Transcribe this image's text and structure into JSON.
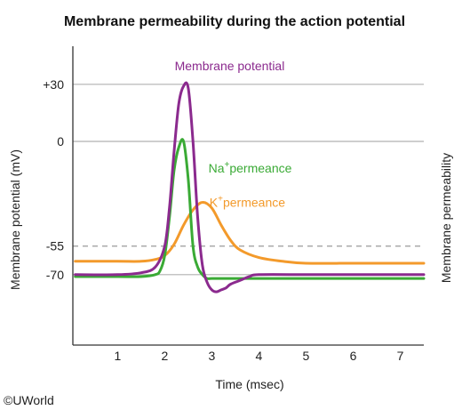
{
  "chart_data": {
    "type": "line",
    "title": "Membrane permeability during the action potential",
    "xlabel": "Time (msec)",
    "ylabel": "Membrane potential (mV)",
    "ylabel_right": "Membrane permeability",
    "xlim": [
      0.05,
      7.5
    ],
    "ylim": [
      -107,
      50
    ],
    "x_ticks": [
      "1",
      "2",
      "3",
      "4",
      "5",
      "6",
      "7"
    ],
    "y_ticks": [
      {
        "value": 30,
        "label": "+30"
      },
      {
        "value": 0,
        "label": "0"
      },
      {
        "value": -55,
        "label": "-55"
      },
      {
        "value": -70,
        "label": "-70"
      }
    ],
    "reference_lines": [
      {
        "value": 30,
        "style": "solid"
      },
      {
        "value": 0,
        "style": "solid"
      },
      {
        "value": -55,
        "style": "dashed"
      },
      {
        "value": -70,
        "style": "solid"
      }
    ],
    "grid": false,
    "series": [
      {
        "name": "Membrane potential",
        "color": "#8b2a8e",
        "x": [
          0.1,
          1.0,
          1.5,
          1.8,
          2.0,
          2.1,
          2.2,
          2.3,
          2.4,
          2.5,
          2.6,
          2.7,
          2.8,
          2.9,
          3.0,
          3.1,
          3.2,
          3.3,
          3.4,
          3.6,
          3.8,
          4.0,
          5.0,
          6.0,
          7.0,
          7.5
        ],
        "y": [
          -70,
          -70,
          -69,
          -66,
          -55,
          -35,
          -5,
          20,
          29,
          28,
          0,
          -40,
          -65,
          -74,
          -78,
          -79,
          -78,
          -77,
          -75,
          -73,
          -71,
          -70,
          -70,
          -70,
          -70,
          -70
        ]
      },
      {
        "name": "Na+ permeance",
        "color": "#3aaa35",
        "x": [
          0.1,
          1.0,
          1.5,
          1.8,
          1.9,
          2.0,
          2.1,
          2.2,
          2.3,
          2.4,
          2.5,
          2.6,
          2.7,
          2.8,
          2.9,
          3.0,
          3.2,
          3.5,
          4.0,
          5.0,
          6.0,
          7.0,
          7.5
        ],
        "y": [
          -71,
          -71,
          -71,
          -70,
          -68,
          -60,
          -40,
          -15,
          -3,
          0,
          -20,
          -55,
          -66,
          -70,
          -72,
          -72,
          -72,
          -72,
          -72,
          -72,
          -72,
          -72,
          -72
        ]
      },
      {
        "name": "K+ permeance",
        "color": "#f39a2b",
        "x": [
          0.1,
          1.0,
          1.5,
          1.8,
          2.0,
          2.2,
          2.4,
          2.6,
          2.8,
          3.0,
          3.2,
          3.4,
          3.6,
          4.0,
          4.5,
          5.0,
          6.0,
          7.0,
          7.5
        ],
        "y": [
          -63,
          -63,
          -63,
          -62,
          -60,
          -54,
          -44,
          -36,
          -32,
          -35,
          -44,
          -52,
          -57,
          -61,
          -63,
          -64,
          -64,
          -64,
          -64
        ]
      }
    ],
    "annotations": [
      {
        "text": "Membrane potential",
        "series": 0
      },
      {
        "text": "Na",
        "sup": "+",
        "rest": "permeance",
        "series": 1
      },
      {
        "text": "K",
        "sup": "+",
        "rest": "permeance",
        "series": 2
      }
    ]
  },
  "copyright": "©UWorld"
}
